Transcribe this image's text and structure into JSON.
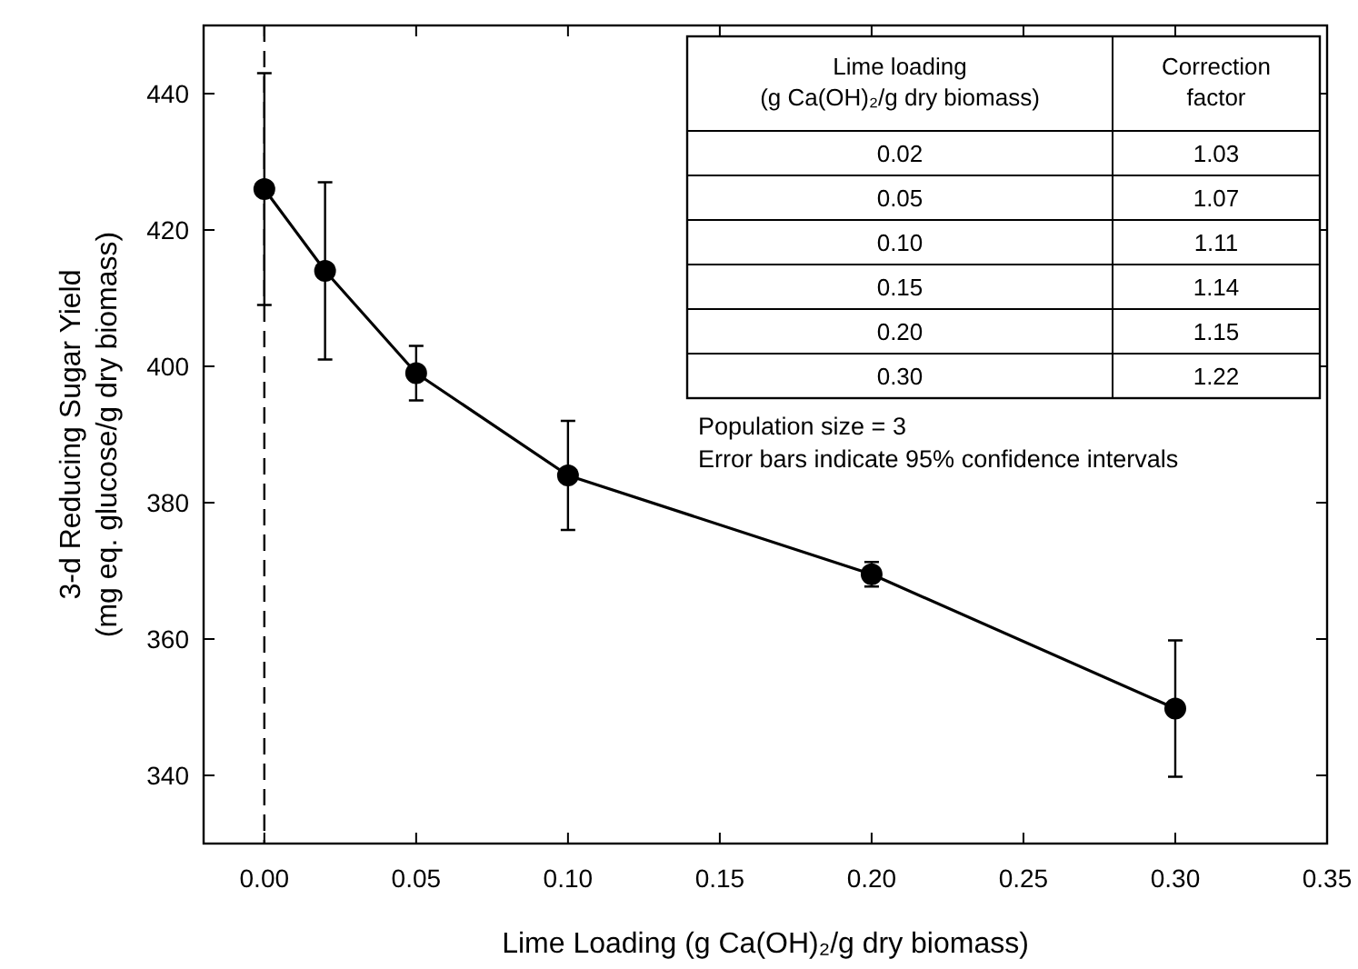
{
  "chart_data": {
    "type": "line",
    "xlabel": "Lime Loading (g Ca(OH)₂/g dry biomass)",
    "ylabel": "3-d Reducing Sugar Yield\n(mg eq. glucose/g dry biomass)",
    "x": [
      0,
      0.02,
      0.05,
      0.1,
      0.2,
      0.3
    ],
    "series": [
      {
        "color": "#000000",
        "values": [
          426,
          414,
          399,
          384,
          369.5,
          349.8
        ],
        "errors": [
          17,
          13,
          4,
          8,
          1.8,
          10
        ]
      }
    ],
    "marker": "circle",
    "line_style": "solid",
    "xlim": [
      -0.02,
      0.35
    ],
    "ylim": [
      330,
      450
    ],
    "xticks": [
      {
        "value": 0,
        "label": "0.00"
      },
      {
        "value": 0.05,
        "label": "0.05"
      },
      {
        "value": 0.1,
        "label": "0.10"
      },
      {
        "value": 0.15,
        "label": "0.15"
      },
      {
        "value": 0.2,
        "label": "0.20"
      },
      {
        "value": 0.25,
        "label": "0.25"
      },
      {
        "value": 0.3,
        "label": "0.30"
      },
      {
        "value": 0.35,
        "label": "0.35"
      }
    ],
    "yticks": [
      340,
      360,
      380,
      400,
      420,
      440
    ],
    "ref_lines": [
      {
        "axis": "x",
        "value": 0,
        "line_style": "dashed"
      }
    ],
    "annotations": [
      "Lime loading\n(g Ca(OH)₂/g dry biomass)",
      "Correction\nfactor",
      "0.02",
      "1.03",
      "0.05",
      "1.07",
      "0.10",
      "1.11",
      "0.15",
      "1.14",
      "0.20",
      "1.15",
      "0.30",
      "1.22",
      "Population size = 3",
      "Error bars indicate 95% confidence intervals"
    ]
  }
}
